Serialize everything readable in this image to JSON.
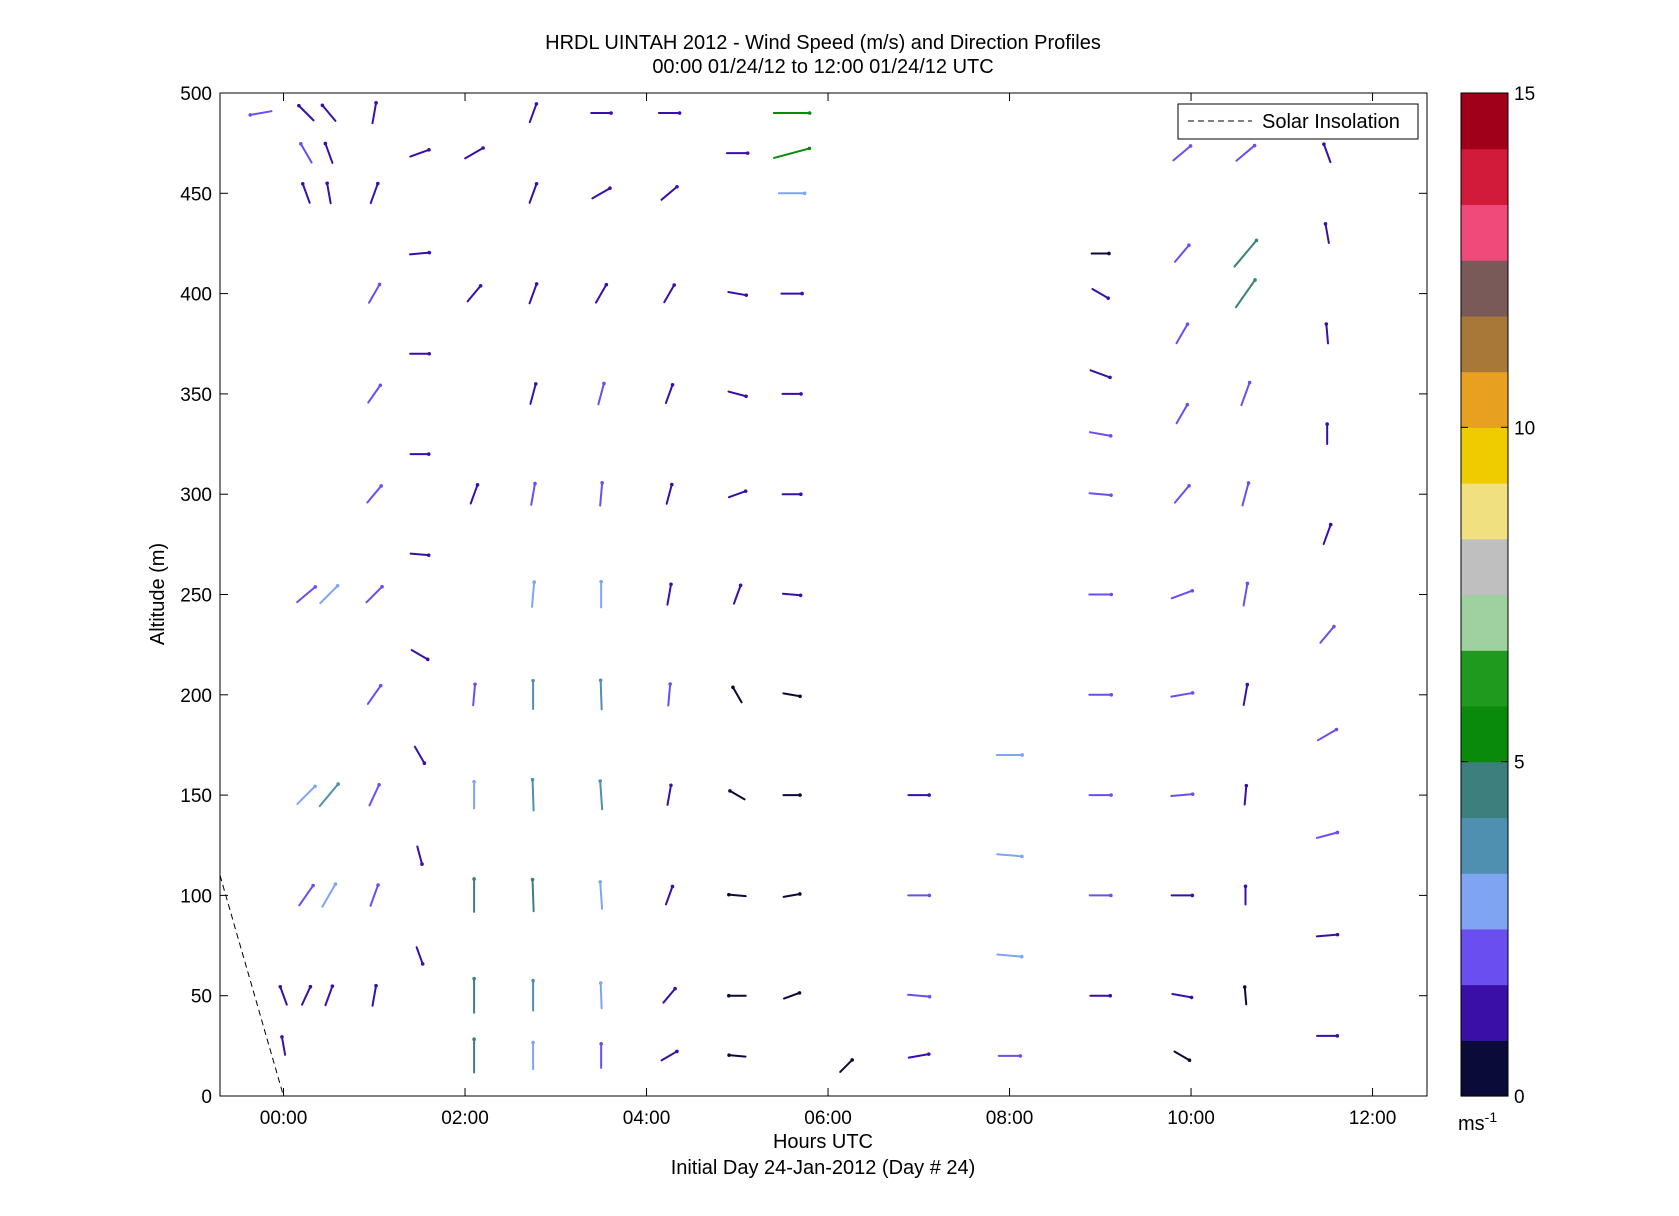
{
  "chart_data": {
    "type": "wind-barb",
    "title": "HRDL UINTAH 2012 - Wind Speed (m/s) and Direction Profiles",
    "subtitle": "00:00 01/24/12 to 12:00 01/24/12  UTC",
    "xlabel": "Hours UTC",
    "xlabel2": "Initial Day 24-Jan-2012 (Day # 24)",
    "ylabel": "Altitude (m)",
    "xlim": [
      -0.7,
      12.6
    ],
    "ylim": [
      0,
      500
    ],
    "xticks": [
      0,
      2,
      4,
      6,
      8,
      10,
      12
    ],
    "xtick_labels": [
      "00:00",
      "02:00",
      "04:00",
      "06:00",
      "08:00",
      "10:00",
      "12:00"
    ],
    "yticks": [
      0,
      50,
      100,
      150,
      200,
      250,
      300,
      350,
      400,
      450,
      500
    ],
    "ytick_labels": [
      "0",
      "50",
      "100",
      "150",
      "200",
      "250",
      "300",
      "350",
      "400",
      "450",
      "500"
    ],
    "legend": {
      "label": "Solar Insolation",
      "position": "top-right",
      "line_style": "dashed"
    },
    "colorbar": {
      "range": [
        0,
        15
      ],
      "ticks": [
        0,
        5,
        10,
        15
      ],
      "tick_labels": [
        "0",
        "5",
        "10",
        "15"
      ],
      "unit_base": "ms",
      "unit_exp": "-1",
      "colors": [
        "#0b0b3a",
        "#3a0fa8",
        "#6a4ef0",
        "#7fa4f2",
        "#4f8fb0",
        "#3c7f7c",
        "#0a8a0a",
        "#1f9a1f",
        "#9fd09f",
        "#bfbfbf",
        "#f0e080",
        "#efcc00",
        "#e8a020",
        "#a87838",
        "#7a5a58",
        "#f04a7a",
        "#d21a3a",
        "#a0001a"
      ]
    },
    "solar_insolation": {
      "x": [
        -0.7,
        0.0
      ],
      "y": [
        110,
        0
      ]
    },
    "profiles": [
      {
        "t": -0.25,
        "alt": [
          490
        ],
        "speed": [
          1.8
        ],
        "dir": [
          80
        ]
      },
      {
        "t": 0.0,
        "alt": [
          50,
          25
        ],
        "speed": [
          1.2,
          1.0
        ],
        "dir": [
          160,
          170
        ]
      },
      {
        "t": 0.25,
        "alt": [
          490,
          470,
          450,
          250,
          150,
          100,
          50
        ],
        "speed": [
          1.6,
          1.8,
          1.5,
          2.3,
          2.6,
          2.4,
          1.4
        ],
        "dir": [
          135,
          150,
          160,
          230,
          225,
          215,
          205
        ]
      },
      {
        "t": 0.5,
        "alt": [
          490,
          470,
          450,
          250,
          150,
          100,
          50
        ],
        "speed": [
          1.5,
          1.6,
          1.5,
          2.5,
          3.5,
          2.9,
          1.5
        ],
        "dir": [
          140,
          160,
          170,
          225,
          220,
          210,
          200
        ]
      },
      {
        "t": 1.0,
        "alt": [
          490,
          450,
          400,
          350,
          300,
          250,
          200,
          150,
          100,
          50
        ],
        "speed": [
          1.6,
          1.6,
          1.7,
          1.7,
          1.8,
          1.9,
          2.0,
          2.1,
          1.9,
          1.5
        ],
        "dir": [
          190,
          200,
          210,
          215,
          220,
          225,
          215,
          205,
          200,
          190
        ]
      },
      {
        "t": 1.5,
        "alt": [
          470,
          420,
          370,
          320,
          270,
          220,
          170,
          120,
          70
        ],
        "speed": [
          1.4,
          1.3,
          1.2,
          1.0,
          1.0,
          1.1,
          1.2,
          1.0,
          0.9
        ],
        "dir": [
          250,
          265,
          270,
          270,
          275,
          300,
          330,
          345,
          340
        ]
      },
      {
        "t": 2.1,
        "alt": [
          470,
          400,
          300,
          200,
          150,
          100,
          50,
          20
        ],
        "speed": [
          1.6,
          1.5,
          1.4,
          1.7,
          3.0,
          4.5,
          4.8,
          4.6
        ],
        "dir": [
          240,
          220,
          200,
          185,
          180,
          180,
          180,
          180
        ]
      },
      {
        "t": 2.75,
        "alt": [
          490,
          450,
          400,
          350,
          300,
          250,
          200,
          150,
          100,
          50,
          20
        ],
        "speed": [
          1.3,
          1.5,
          1.6,
          1.6,
          1.8,
          2.6,
          3.4,
          4.0,
          4.2,
          3.8,
          3.0
        ],
        "dir": [
          200,
          200,
          200,
          195,
          190,
          185,
          180,
          178,
          178,
          180,
          180
        ]
      },
      {
        "t": 3.5,
        "alt": [
          490,
          450,
          400,
          350,
          300,
          250,
          200,
          150,
          100,
          50,
          20
        ],
        "speed": [
          1.4,
          1.5,
          1.6,
          1.8,
          2.1,
          2.8,
          3.6,
          3.4,
          3.1,
          2.7,
          2.4
        ],
        "dir": [
          270,
          240,
          210,
          195,
          185,
          180,
          178,
          176,
          176,
          178,
          180
        ]
      },
      {
        "t": 4.25,
        "alt": [
          490,
          450,
          400,
          350,
          300,
          250,
          200,
          150,
          100,
          50,
          20
        ],
        "speed": [
          1.6,
          1.5,
          1.4,
          1.3,
          1.4,
          1.6,
          1.8,
          1.4,
          1.2,
          1.0,
          0.9
        ],
        "dir": [
          270,
          230,
          210,
          200,
          195,
          190,
          185,
          190,
          200,
          220,
          240
        ]
      },
      {
        "t": 5.0,
        "alt": [
          470,
          400,
          350,
          300,
          250,
          200,
          150,
          100,
          50,
          20
        ],
        "speed": [
          1.6,
          1.0,
          1.0,
          0.9,
          1.3,
          0.8,
          0.7,
          0.7,
          0.7,
          0.6
        ],
        "dir": [
          270,
          280,
          285,
          250,
          200,
          150,
          120,
          95,
          90,
          95
        ]
      },
      {
        "t": 5.6,
        "alt": [
          490,
          470,
          450,
          400,
          350,
          300,
          250,
          200,
          150,
          100,
          50
        ],
        "speed": [
          5.2,
          5.4,
          2.8,
          1.6,
          1.1,
          1.0,
          0.9,
          0.7,
          0.6,
          0.6,
          0.6
        ],
        "dir": [
          270,
          255,
          270,
          270,
          270,
          270,
          275,
          280,
          270,
          260,
          250
        ]
      },
      {
        "t": 6.2,
        "alt": [
          15
        ],
        "speed": [
          0.7
        ],
        "dir": [
          225
        ]
      },
      {
        "t": 7.0,
        "alt": [
          150,
          100,
          50,
          20
        ],
        "speed": [
          1.6,
          1.7,
          1.8,
          1.5
        ],
        "dir": [
          270,
          270,
          275,
          260
        ]
      },
      {
        "t": 8.0,
        "alt": [
          170,
          120,
          70,
          20
        ],
        "speed": [
          2.7,
          2.6,
          2.5,
          1.8
        ],
        "dir": [
          270,
          275,
          275,
          270
        ]
      },
      {
        "t": 9.0,
        "alt": [
          420,
          400,
          360,
          330,
          300,
          250,
          200,
          150,
          100,
          50
        ],
        "speed": [
          0.8,
          1.0,
          1.6,
          1.7,
          1.8,
          1.9,
          1.9,
          1.8,
          1.7,
          1.4
        ],
        "dir": [
          270,
          300,
          290,
          280,
          275,
          270,
          270,
          270,
          270,
          270
        ]
      },
      {
        "t": 9.9,
        "alt": [
          470,
          420,
          380,
          340,
          300,
          250,
          200,
          150,
          100,
          50,
          20
        ],
        "speed": [
          2.0,
          1.8,
          1.9,
          1.8,
          1.9,
          1.9,
          1.8,
          1.8,
          1.6,
          1.3,
          0.8
        ],
        "dir": [
          230,
          220,
          210,
          210,
          220,
          250,
          260,
          265,
          270,
          280,
          300
        ]
      },
      {
        "t": 10.6,
        "alt": [
          470,
          420,
          400,
          350,
          300,
          250,
          200,
          150,
          100,
          50
        ],
        "speed": [
          2.3,
          4.8,
          4.6,
          2.4,
          2.2,
          2.0,
          1.6,
          1.2,
          1.0,
          0.8
        ],
        "dir": [
          230,
          220,
          215,
          200,
          195,
          190,
          190,
          185,
          180,
          175
        ]
      },
      {
        "t": 11.5,
        "alt": [
          470,
          430,
          380,
          330,
          280,
          230,
          180,
          130,
          80,
          30
        ],
        "speed": [
          1.2,
          1.3,
          1.3,
          1.4,
          1.6,
          1.7,
          1.8,
          1.7,
          1.6,
          1.5
        ],
        "dir": [
          160,
          170,
          175,
          180,
          200,
          220,
          240,
          255,
          265,
          270
        ]
      }
    ]
  }
}
